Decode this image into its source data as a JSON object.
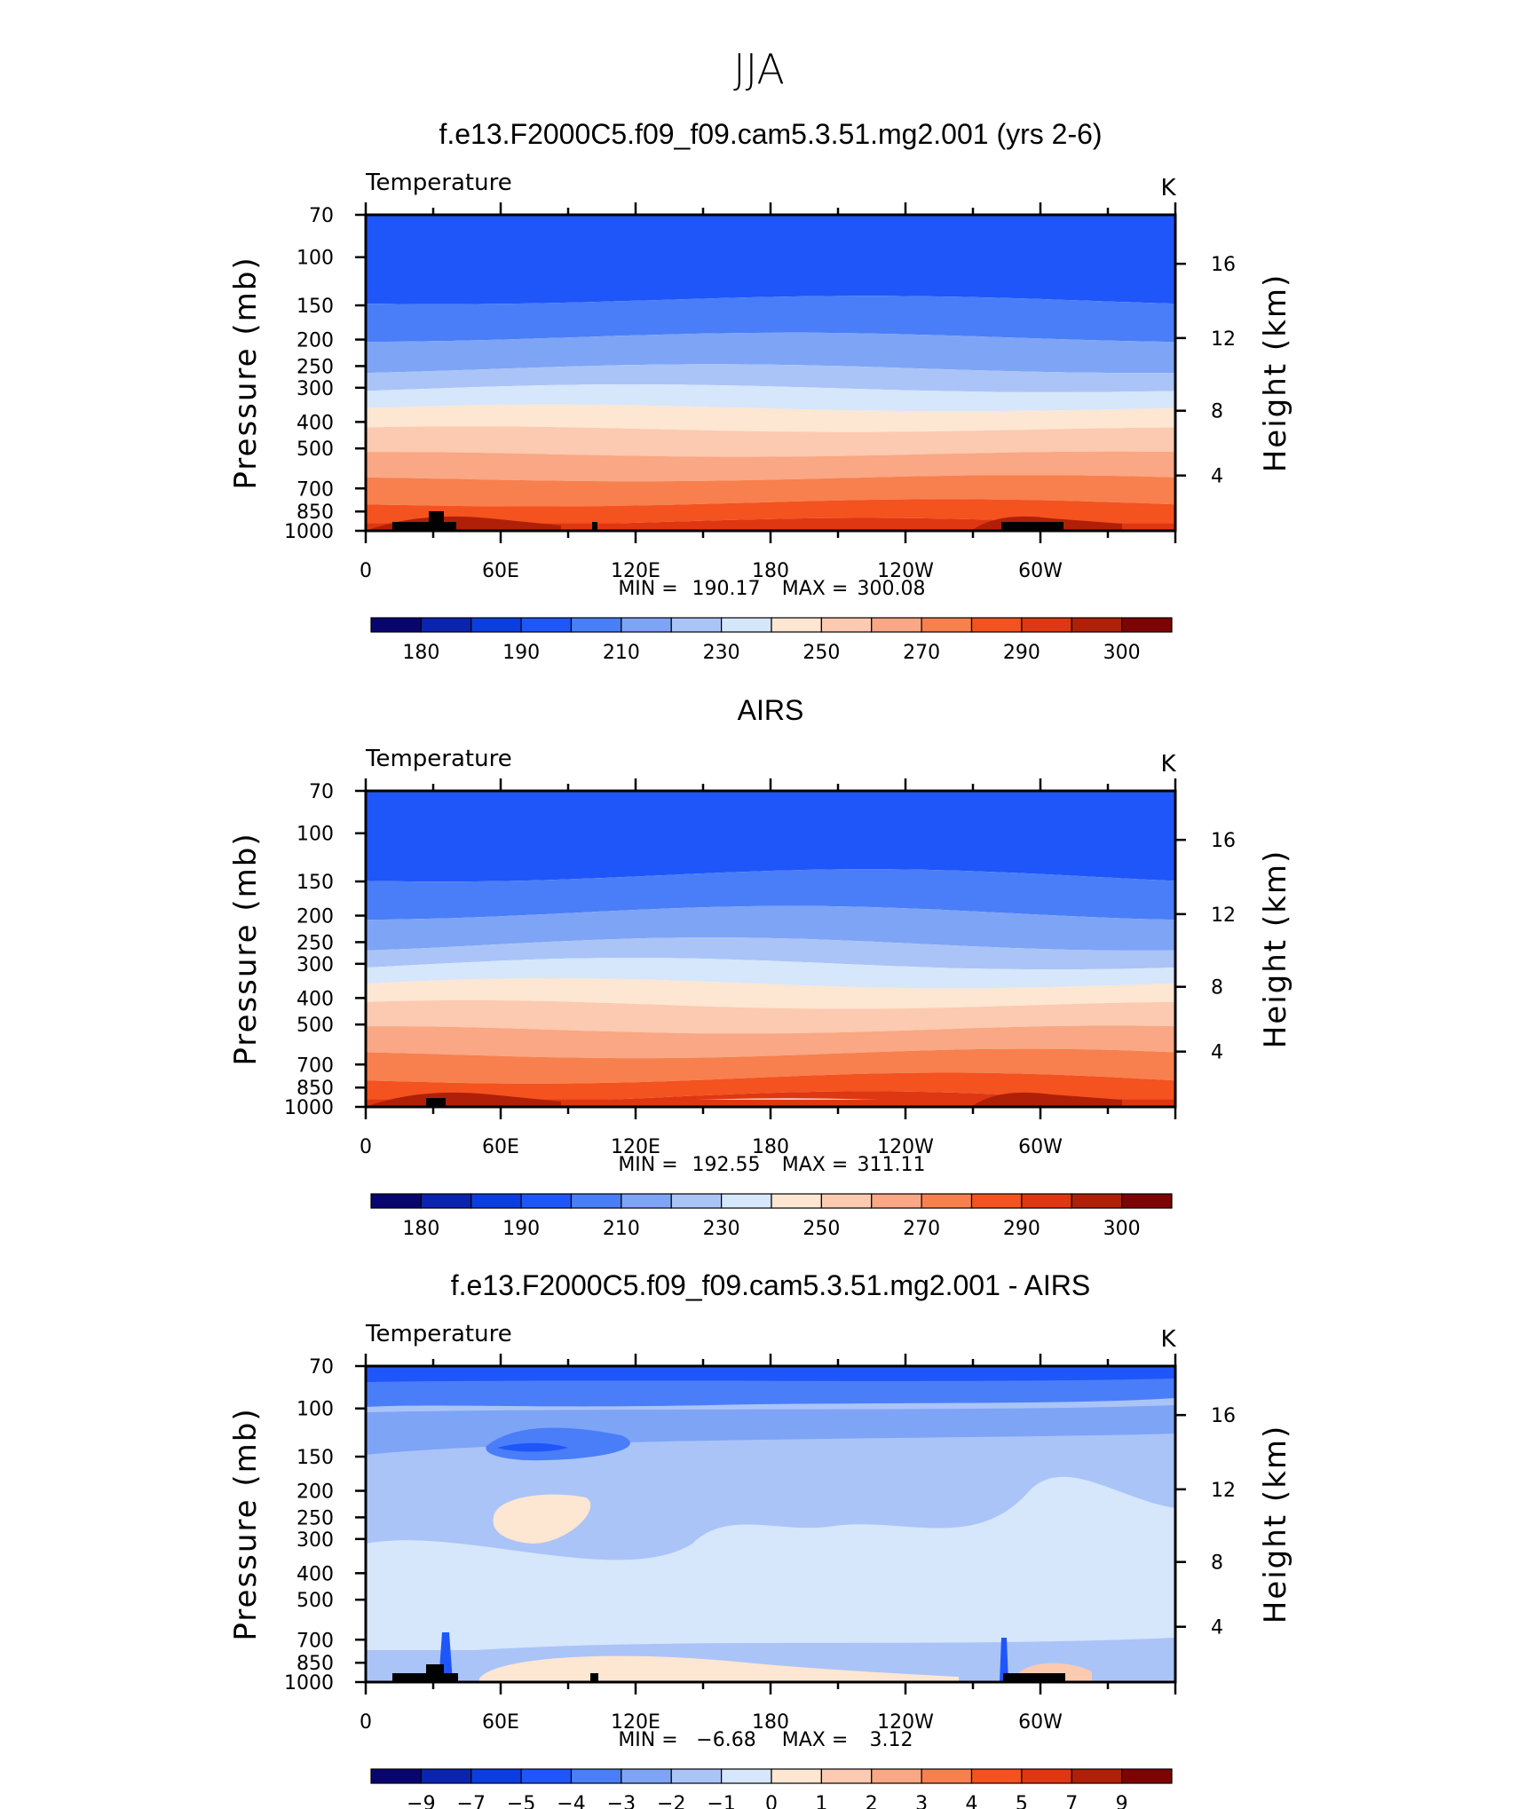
{
  "page_title": "JJA",
  "colors": {
    "temp_levels": [
      "#08066e",
      "#0a24b0",
      "#0a3ee0",
      "#1f56fa",
      "#4a7ef8",
      "#7ea4f6",
      "#aac4f8",
      "#d6e6fb",
      "#fde6d2",
      "#fbcab0",
      "#f9a784",
      "#f7804e",
      "#f4521f",
      "#df3712",
      "#b02008",
      "#7e0404"
    ],
    "diff_levels": [
      "#08066e",
      "#0a24b0",
      "#0a3ee0",
      "#1f56fa",
      "#4a7ef8",
      "#7ea4f6",
      "#aac4f8",
      "#d6e6fb",
      "#fde6d2",
      "#fbcab0",
      "#f9a784",
      "#f7804e",
      "#f4521f",
      "#df3712",
      "#b02008",
      "#7e0404"
    ],
    "topography": "#000000"
  },
  "chart_data": [
    {
      "type": "heatmap",
      "title": "f.e13.F2000C5.f09_f09.cam5.3.51.mg2.001 (yrs 2-6)",
      "variable": "Temperature",
      "units": "K",
      "ylabel": "Pressure (mb)",
      "ylabel_right": "Height (km)",
      "x_ticklabels": [
        "0",
        "60E",
        "120E",
        "180",
        "120W",
        "60W"
      ],
      "y_ticklabels": [
        "70",
        "100",
        "150",
        "200",
        "250",
        "300",
        "400",
        "500",
        "700",
        "850",
        "1000"
      ],
      "y_right_ticklabels": [
        "16",
        "12",
        "8",
        "4"
      ],
      "stats": {
        "min_label": "MIN",
        "min": "190.17",
        "max_label": "MAX",
        "max": "300.08"
      },
      "colorbar_labels": [
        "180",
        "190",
        "210",
        "230",
        "250",
        "270",
        "290",
        "300"
      ],
      "bands_from_top": [
        [
          "70",
          "150"
        ],
        [
          "150",
          "200"
        ],
        [
          "200",
          "260"
        ],
        [
          "260",
          "310"
        ],
        [
          "310",
          "390"
        ],
        [
          "390",
          "480"
        ],
        [
          "480",
          "620"
        ],
        [
          "620",
          "780"
        ],
        [
          "780",
          "920"
        ],
        [
          "920",
          "1000"
        ]
      ]
    },
    {
      "type": "heatmap",
      "title": "AIRS",
      "variable": "Temperature",
      "units": "K",
      "ylabel": "Pressure (mb)",
      "ylabel_right": "Height (km)",
      "x_ticklabels": [
        "0",
        "60E",
        "120E",
        "180",
        "120W",
        "60W"
      ],
      "y_ticklabels": [
        "70",
        "100",
        "150",
        "200",
        "250",
        "300",
        "400",
        "500",
        "700",
        "850",
        "1000"
      ],
      "y_right_ticklabels": [
        "16",
        "12",
        "8",
        "4"
      ],
      "stats": {
        "min_label": "MIN",
        "min": "192.55",
        "max_label": "MAX",
        "max": "311.11"
      },
      "colorbar_labels": [
        "180",
        "190",
        "210",
        "230",
        "250",
        "270",
        "290",
        "300"
      ]
    },
    {
      "type": "heatmap",
      "title": "f.e13.F2000C5.f09_f09.cam5.3.51.mg2.001 - AIRS",
      "variable": "Temperature",
      "units": "K",
      "ylabel": "Pressure (mb)",
      "ylabel_right": "Height (km)",
      "x_ticklabels": [
        "0",
        "60E",
        "120E",
        "180",
        "120W",
        "60W"
      ],
      "y_ticklabels": [
        "70",
        "100",
        "150",
        "200",
        "250",
        "300",
        "400",
        "500",
        "700",
        "850",
        "1000"
      ],
      "y_right_ticklabels": [
        "16",
        "12",
        "8",
        "4"
      ],
      "stats": {
        "min_label": "MIN",
        "min": "−6.68",
        "max_label": "MAX",
        "max": "3.12"
      },
      "colorbar_labels": [
        "−9",
        "−7",
        "−5",
        "−4",
        "−3",
        "−2",
        "−1",
        "0",
        "1",
        "2",
        "3",
        "4",
        "5",
        "7",
        "9"
      ]
    }
  ]
}
